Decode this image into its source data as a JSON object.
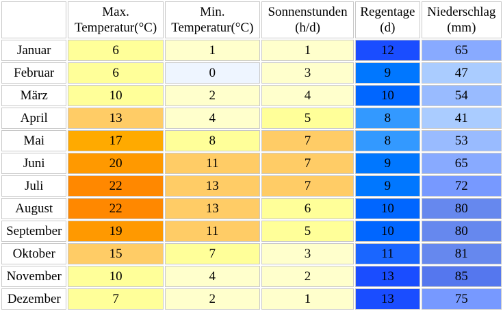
{
  "headers": [
    {
      "line1": "",
      "line2": ""
    },
    {
      "line1": "Max.",
      "line2": "Temperatur(°C)"
    },
    {
      "line1": "Min.",
      "line2": "Temperatur(°C)"
    },
    {
      "line1": "Sonnenstunden",
      "line2": "(h/d)"
    },
    {
      "line1": "Regentage",
      "line2": "(d)"
    },
    {
      "line1": "Niederschlag",
      "line2": "(mm)"
    }
  ],
  "rows": [
    {
      "month": "Januar",
      "max": "6",
      "min": "1",
      "sun": "1",
      "raindays": "12",
      "precip": "65"
    },
    {
      "month": "Februar",
      "max": "6",
      "min": "0",
      "sun": "3",
      "raindays": "9",
      "precip": "47"
    },
    {
      "month": "März",
      "max": "10",
      "min": "2",
      "sun": "4",
      "raindays": "10",
      "precip": "54"
    },
    {
      "month": "April",
      "max": "13",
      "min": "4",
      "sun": "5",
      "raindays": "8",
      "precip": "41"
    },
    {
      "month": "Mai",
      "max": "17",
      "min": "8",
      "sun": "7",
      "raindays": "8",
      "precip": "53"
    },
    {
      "month": "Juni",
      "max": "20",
      "min": "11",
      "sun": "7",
      "raindays": "9",
      "precip": "65"
    },
    {
      "month": "Juli",
      "max": "22",
      "min": "13",
      "sun": "7",
      "raindays": "9",
      "precip": "72"
    },
    {
      "month": "August",
      "max": "22",
      "min": "13",
      "sun": "6",
      "raindays": "10",
      "precip": "80"
    },
    {
      "month": "September",
      "max": "19",
      "min": "11",
      "sun": "5",
      "raindays": "10",
      "precip": "80"
    },
    {
      "month": "Oktober",
      "max": "15",
      "min": "7",
      "sun": "3",
      "raindays": "11",
      "precip": "81"
    },
    {
      "month": "November",
      "max": "10",
      "min": "4",
      "sun": "2",
      "raindays": "13",
      "precip": "85"
    },
    {
      "month": "Dezember",
      "max": "7",
      "min": "2",
      "sun": "1",
      "raindays": "13",
      "precip": "75"
    }
  ],
  "cell_colors": {
    "max": [
      "#ffff99",
      "#ffff99",
      "#ffff99",
      "#ffcc66",
      "#ffaa00",
      "#ff9900",
      "#ff8800",
      "#ff8800",
      "#ff9900",
      "#ffcc66",
      "#ffff99",
      "#ffff99"
    ],
    "min": [
      "#ffffcc",
      "#eef5ff",
      "#ffffcc",
      "#ffffcc",
      "#ffff99",
      "#ffcc66",
      "#ffcc66",
      "#ffcc66",
      "#ffcc66",
      "#ffff99",
      "#ffffcc",
      "#ffffcc"
    ],
    "sun": [
      "#ffffcc",
      "#ffffcc",
      "#ffffcc",
      "#ffff99",
      "#ffcc66",
      "#ffcc66",
      "#ffcc66",
      "#ffff99",
      "#ffff99",
      "#ffffcc",
      "#ffffcc",
      "#ffffcc"
    ],
    "raindays": [
      "#1a4dff",
      "#0077ff",
      "#0066ff",
      "#3399ff",
      "#3399ff",
      "#0077ff",
      "#0077ff",
      "#0066ff",
      "#0066ff",
      "#1a66ff",
      "#1a4dff",
      "#1a4dff"
    ],
    "precip": [
      "#88aaff",
      "#aaccff",
      "#99bbff",
      "#aaccff",
      "#99bbff",
      "#88aaff",
      "#7799ff",
      "#6688ee",
      "#6688ee",
      "#6688ee",
      "#5577ee",
      "#7799ff"
    ]
  }
}
